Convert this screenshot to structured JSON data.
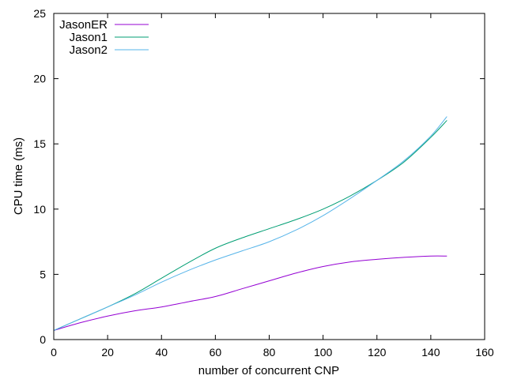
{
  "chart_data": {
    "type": "line",
    "xlabel": "number of concurrent CNP",
    "ylabel": "CPU time (ms)",
    "xlim": [
      0,
      160
    ],
    "ylim": [
      0,
      25
    ],
    "xticks": [
      0,
      20,
      40,
      60,
      80,
      100,
      120,
      140,
      160
    ],
    "yticks": [
      0,
      5,
      10,
      15,
      20,
      25
    ],
    "grid": false,
    "legend_position": "top-left",
    "series": [
      {
        "name": "JasonER",
        "color": "#9400d3",
        "x": [
          0,
          10,
          20,
          30,
          40,
          50,
          60,
          70,
          80,
          90,
          100,
          110,
          120,
          130,
          140,
          146
        ],
        "values": [
          0.7,
          1.3,
          1.8,
          2.2,
          2.5,
          2.9,
          3.3,
          3.9,
          4.5,
          5.1,
          5.6,
          5.95,
          6.15,
          6.3,
          6.4,
          6.4
        ]
      },
      {
        "name": "Jason1",
        "color": "#009e73",
        "x": [
          0,
          10,
          20,
          30,
          40,
          50,
          60,
          70,
          80,
          90,
          100,
          110,
          120,
          130,
          140,
          146
        ],
        "values": [
          0.7,
          1.6,
          2.5,
          3.5,
          4.7,
          5.9,
          7.0,
          7.8,
          8.5,
          9.2,
          10.0,
          11.0,
          12.2,
          13.6,
          15.5,
          16.8
        ]
      },
      {
        "name": "Jason2",
        "color": "#56b4e9",
        "x": [
          0,
          10,
          20,
          30,
          40,
          50,
          60,
          70,
          80,
          90,
          100,
          110,
          120,
          130,
          140,
          146
        ],
        "values": [
          0.7,
          1.6,
          2.5,
          3.4,
          4.4,
          5.3,
          6.1,
          6.8,
          7.5,
          8.4,
          9.5,
          10.8,
          12.2,
          13.7,
          15.6,
          17.1
        ]
      }
    ]
  }
}
